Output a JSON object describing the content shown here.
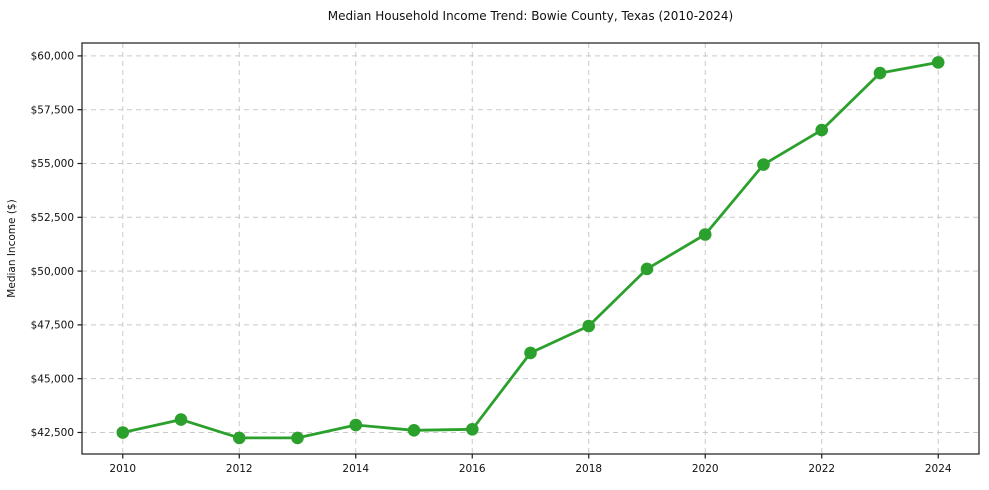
{
  "figure": {
    "title": "Median Household Income Trend: Bowie County, Texas (2010-2024)"
  },
  "chart_data": {
    "type": "line",
    "title": "Median Household Income Trend: Bowie County, Texas (2010-2024)",
    "xlabel": "",
    "ylabel": "Median Income ($)",
    "x": [
      2010,
      2011,
      2012,
      2013,
      2014,
      2015,
      2016,
      2017,
      2018,
      2019,
      2020,
      2021,
      2022,
      2023,
      2024
    ],
    "values": [
      42500,
      43100,
      42250,
      42250,
      42850,
      42600,
      42650,
      46200,
      47450,
      50100,
      51700,
      54950,
      56550,
      59200,
      59700
    ],
    "series_name": "median-household-income",
    "line_color": "#2ca02c",
    "marker": "circle",
    "marker_radius": 6.3,
    "line_width": 2.8,
    "grid": true,
    "grid_style": "dashed",
    "grid_color": "#c9c9c9",
    "spine_color": "#1a1a1a",
    "legend_position": "none",
    "xlim": [
      2009.3,
      2024.7
    ],
    "ylim": [
      41500,
      60600
    ],
    "yticks": [
      {
        "v": 42500,
        "label": "$42,500"
      },
      {
        "v": 45000,
        "label": "$45,000"
      },
      {
        "v": 47500,
        "label": "$47,500"
      },
      {
        "v": 50000,
        "label": "$50,000"
      },
      {
        "v": 52500,
        "label": "$52,500"
      },
      {
        "v": 55000,
        "label": "$55,000"
      },
      {
        "v": 57500,
        "label": "$57,500"
      },
      {
        "v": 60000,
        "label": "$60,000"
      }
    ],
    "xticks": [
      {
        "v": 2010,
        "label": "2010"
      },
      {
        "v": 2012,
        "label": "2012"
      },
      {
        "v": 2014,
        "label": "2014"
      },
      {
        "v": 2016,
        "label": "2016"
      },
      {
        "v": 2018,
        "label": "2018"
      },
      {
        "v": 2020,
        "label": "2020"
      },
      {
        "v": 2022,
        "label": "2022"
      },
      {
        "v": 2024,
        "label": "2024"
      }
    ]
  }
}
